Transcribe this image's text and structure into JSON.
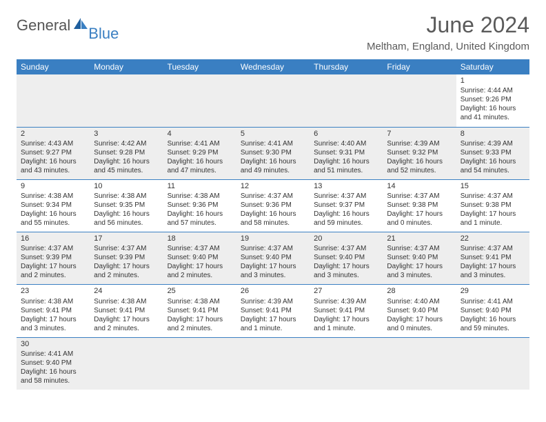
{
  "brand": {
    "part1": "General",
    "part2": "Blue"
  },
  "title": "June 2024",
  "location": "Meltham, England, United Kingdom",
  "colors": {
    "header_bg": "#3a7fc2",
    "header_fg": "#ffffff",
    "shaded_bg": "#eeeeee",
    "text": "#333333",
    "title_text": "#5a5a5a",
    "border": "#3a7fc2"
  },
  "day_headers": [
    "Sunday",
    "Monday",
    "Tuesday",
    "Wednesday",
    "Thursday",
    "Friday",
    "Saturday"
  ],
  "weeks": [
    [
      null,
      null,
      null,
      null,
      null,
      null,
      {
        "n": "1",
        "sr": "Sunrise: 4:44 AM",
        "ss": "Sunset: 9:26 PM",
        "d1": "Daylight: 16 hours",
        "d2": "and 41 minutes."
      }
    ],
    [
      {
        "n": "2",
        "sr": "Sunrise: 4:43 AM",
        "ss": "Sunset: 9:27 PM",
        "d1": "Daylight: 16 hours",
        "d2": "and 43 minutes."
      },
      {
        "n": "3",
        "sr": "Sunrise: 4:42 AM",
        "ss": "Sunset: 9:28 PM",
        "d1": "Daylight: 16 hours",
        "d2": "and 45 minutes."
      },
      {
        "n": "4",
        "sr": "Sunrise: 4:41 AM",
        "ss": "Sunset: 9:29 PM",
        "d1": "Daylight: 16 hours",
        "d2": "and 47 minutes."
      },
      {
        "n": "5",
        "sr": "Sunrise: 4:41 AM",
        "ss": "Sunset: 9:30 PM",
        "d1": "Daylight: 16 hours",
        "d2": "and 49 minutes."
      },
      {
        "n": "6",
        "sr": "Sunrise: 4:40 AM",
        "ss": "Sunset: 9:31 PM",
        "d1": "Daylight: 16 hours",
        "d2": "and 51 minutes."
      },
      {
        "n": "7",
        "sr": "Sunrise: 4:39 AM",
        "ss": "Sunset: 9:32 PM",
        "d1": "Daylight: 16 hours",
        "d2": "and 52 minutes."
      },
      {
        "n": "8",
        "sr": "Sunrise: 4:39 AM",
        "ss": "Sunset: 9:33 PM",
        "d1": "Daylight: 16 hours",
        "d2": "and 54 minutes."
      }
    ],
    [
      {
        "n": "9",
        "sr": "Sunrise: 4:38 AM",
        "ss": "Sunset: 9:34 PM",
        "d1": "Daylight: 16 hours",
        "d2": "and 55 minutes."
      },
      {
        "n": "10",
        "sr": "Sunrise: 4:38 AM",
        "ss": "Sunset: 9:35 PM",
        "d1": "Daylight: 16 hours",
        "d2": "and 56 minutes."
      },
      {
        "n": "11",
        "sr": "Sunrise: 4:38 AM",
        "ss": "Sunset: 9:36 PM",
        "d1": "Daylight: 16 hours",
        "d2": "and 57 minutes."
      },
      {
        "n": "12",
        "sr": "Sunrise: 4:37 AM",
        "ss": "Sunset: 9:36 PM",
        "d1": "Daylight: 16 hours",
        "d2": "and 58 minutes."
      },
      {
        "n": "13",
        "sr": "Sunrise: 4:37 AM",
        "ss": "Sunset: 9:37 PM",
        "d1": "Daylight: 16 hours",
        "d2": "and 59 minutes."
      },
      {
        "n": "14",
        "sr": "Sunrise: 4:37 AM",
        "ss": "Sunset: 9:38 PM",
        "d1": "Daylight: 17 hours",
        "d2": "and 0 minutes."
      },
      {
        "n": "15",
        "sr": "Sunrise: 4:37 AM",
        "ss": "Sunset: 9:38 PM",
        "d1": "Daylight: 17 hours",
        "d2": "and 1 minute."
      }
    ],
    [
      {
        "n": "16",
        "sr": "Sunrise: 4:37 AM",
        "ss": "Sunset: 9:39 PM",
        "d1": "Daylight: 17 hours",
        "d2": "and 2 minutes."
      },
      {
        "n": "17",
        "sr": "Sunrise: 4:37 AM",
        "ss": "Sunset: 9:39 PM",
        "d1": "Daylight: 17 hours",
        "d2": "and 2 minutes."
      },
      {
        "n": "18",
        "sr": "Sunrise: 4:37 AM",
        "ss": "Sunset: 9:40 PM",
        "d1": "Daylight: 17 hours",
        "d2": "and 2 minutes."
      },
      {
        "n": "19",
        "sr": "Sunrise: 4:37 AM",
        "ss": "Sunset: 9:40 PM",
        "d1": "Daylight: 17 hours",
        "d2": "and 3 minutes."
      },
      {
        "n": "20",
        "sr": "Sunrise: 4:37 AM",
        "ss": "Sunset: 9:40 PM",
        "d1": "Daylight: 17 hours",
        "d2": "and 3 minutes."
      },
      {
        "n": "21",
        "sr": "Sunrise: 4:37 AM",
        "ss": "Sunset: 9:40 PM",
        "d1": "Daylight: 17 hours",
        "d2": "and 3 minutes."
      },
      {
        "n": "22",
        "sr": "Sunrise: 4:37 AM",
        "ss": "Sunset: 9:41 PM",
        "d1": "Daylight: 17 hours",
        "d2": "and 3 minutes."
      }
    ],
    [
      {
        "n": "23",
        "sr": "Sunrise: 4:38 AM",
        "ss": "Sunset: 9:41 PM",
        "d1": "Daylight: 17 hours",
        "d2": "and 3 minutes."
      },
      {
        "n": "24",
        "sr": "Sunrise: 4:38 AM",
        "ss": "Sunset: 9:41 PM",
        "d1": "Daylight: 17 hours",
        "d2": "and 2 minutes."
      },
      {
        "n": "25",
        "sr": "Sunrise: 4:38 AM",
        "ss": "Sunset: 9:41 PM",
        "d1": "Daylight: 17 hours",
        "d2": "and 2 minutes."
      },
      {
        "n": "26",
        "sr": "Sunrise: 4:39 AM",
        "ss": "Sunset: 9:41 PM",
        "d1": "Daylight: 17 hours",
        "d2": "and 1 minute."
      },
      {
        "n": "27",
        "sr": "Sunrise: 4:39 AM",
        "ss": "Sunset: 9:41 PM",
        "d1": "Daylight: 17 hours",
        "d2": "and 1 minute."
      },
      {
        "n": "28",
        "sr": "Sunrise: 4:40 AM",
        "ss": "Sunset: 9:40 PM",
        "d1": "Daylight: 17 hours",
        "d2": "and 0 minutes."
      },
      {
        "n": "29",
        "sr": "Sunrise: 4:41 AM",
        "ss": "Sunset: 9:40 PM",
        "d1": "Daylight: 16 hours",
        "d2": "and 59 minutes."
      }
    ],
    [
      {
        "n": "30",
        "sr": "Sunrise: 4:41 AM",
        "ss": "Sunset: 9:40 PM",
        "d1": "Daylight: 16 hours",
        "d2": "and 58 minutes."
      },
      null,
      null,
      null,
      null,
      null,
      null
    ]
  ]
}
